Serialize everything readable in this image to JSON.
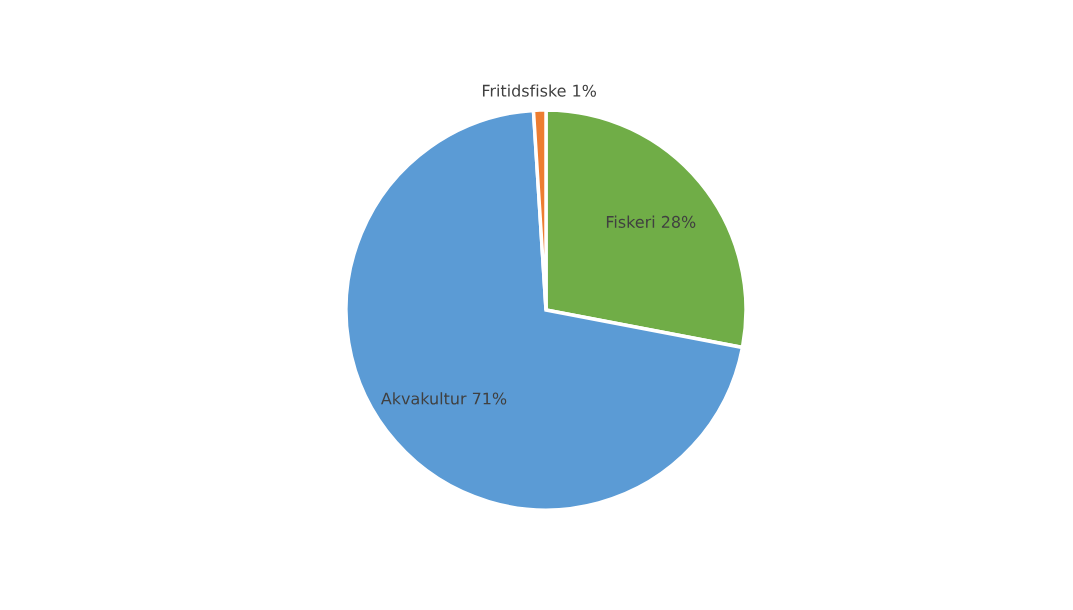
{
  "chart_data": {
    "type": "pie",
    "categories": [
      "Fiskeri",
      "Akvakultur",
      "Fritidsfiske"
    ],
    "values": [
      28,
      71,
      1
    ],
    "colors": [
      "#70ad47",
      "#5b9bd5",
      "#ed7d31"
    ],
    "value_labels": [
      "28%",
      "71%",
      "1%"
    ],
    "legend": false
  }
}
